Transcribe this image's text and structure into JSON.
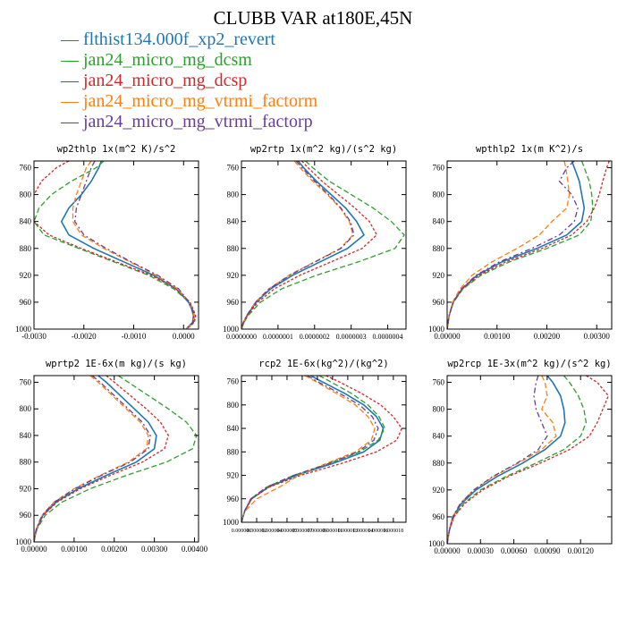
{
  "figure": {
    "title": "CLUBB VAR at180E,45N",
    "colors": {
      "blue": "#1f77b4",
      "green": "#2ca02c",
      "red": "#d62728",
      "orange": "#ff7f0e",
      "purple": "#6a3d9a"
    },
    "legend": [
      {
        "label": "flthist134.000f_xp2_revert",
        "color": "#1f77b4"
      },
      {
        "label": "jan24_micro_mg_dcsm",
        "color": "#2ca02c"
      },
      {
        "label": "jan24_micro_mg_dcsp",
        "color": "#d62728"
      },
      {
        "label": "jan24_micro_mg_vtrmi_factorm",
        "color": "#ff7f0e"
      },
      {
        "label": "jan24_micro_mg_vtrmi_factorp",
        "color": "#6a3d9a"
      }
    ]
  },
  "chart_data": [
    {
      "type": "line",
      "title": "wp2thlp  1x(m^2 K)/s^2",
      "xlim": [
        -0.003,
        0.0003
      ],
      "ylim": [
        1000,
        750
      ],
      "xticks": [
        -0.003,
        -0.002,
        -0.001,
        0.0
      ],
      "xtick_labels": [
        "-0.0030",
        "-0.0020",
        "-0.0010",
        "0.0000"
      ],
      "yticks": [
        760,
        800,
        840,
        880,
        920,
        960,
        1000
      ],
      "ytick_labels": [
        "760",
        "800",
        "840",
        "880",
        "920",
        "960",
        "1000"
      ],
      "y": [
        750,
        760,
        780,
        800,
        820,
        840,
        860,
        880,
        900,
        920,
        940,
        960,
        970,
        980,
        990,
        1000
      ],
      "series": [
        {
          "name": "flthist134.000f_xp2_revert",
          "values": [
            -0.00165,
            -0.0017,
            -0.00185,
            -0.00205,
            -0.0023,
            -0.00245,
            -0.0023,
            -0.0018,
            -0.0012,
            -0.0006,
            -0.00015,
            0.0001,
            0.00016,
            0.0002,
            0.00018,
            5e-05
          ]
        },
        {
          "name": "jan24_micro_mg_dcsm",
          "values": [
            -0.0016,
            -0.00175,
            -0.00225,
            -0.00265,
            -0.0029,
            -0.003,
            -0.0028,
            -0.0021,
            -0.0014,
            -0.0007,
            -0.0002,
            0.00012,
            0.00018,
            0.00022,
            0.0002,
            6e-05
          ]
        },
        {
          "name": "jan24_micro_mg_dcsp",
          "values": [
            -0.0023,
            -0.00255,
            -0.00285,
            -0.003,
            -0.00305,
            -0.003,
            -0.0027,
            -0.00205,
            -0.00135,
            -0.00065,
            -0.00015,
            0.00013,
            0.00019,
            0.00024,
            0.00022,
            6e-05
          ]
        },
        {
          "name": "jan24_micro_mg_vtrmi_factorm",
          "values": [
            -0.00185,
            -0.00195,
            -0.00205,
            -0.00215,
            -0.00222,
            -0.00222,
            -0.00205,
            -0.0016,
            -0.00108,
            -0.00055,
            -0.00012,
            0.00011,
            0.00017,
            0.00021,
            0.00019,
            5e-05
          ]
        },
        {
          "name": "jan24_micro_mg_vtrmi_factorp",
          "values": [
            -0.00178,
            -0.00185,
            -0.00195,
            -0.00205,
            -0.00215,
            -0.00218,
            -0.002,
            -0.00155,
            -0.00105,
            -0.00052,
            -0.0001,
            0.00011,
            0.00017,
            0.00021,
            0.00019,
            5e-05
          ]
        }
      ]
    },
    {
      "type": "line",
      "title": "wp2rtp  1x(m^2 kg)/(s^2 kg)",
      "xlim": [
        0.0,
        4.5e-07
      ],
      "ylim": [
        1000,
        750
      ],
      "xticks": [
        0.0,
        1e-07,
        2e-07,
        3e-07,
        4e-07
      ],
      "xtick_labels": [
        "0.0000000",
        "0.0000001",
        "0.0000002",
        "0.0000003",
        "0.0000004"
      ],
      "yticks": [
        760,
        800,
        840,
        880,
        920,
        960,
        1000
      ],
      "ytick_labels": [
        "760",
        "800",
        "840",
        "880",
        "920",
        "960",
        "1000"
      ],
      "y": [
        750,
        760,
        780,
        800,
        820,
        840,
        860,
        880,
        900,
        920,
        940,
        960,
        980,
        990,
        1000
      ],
      "series": [
        {
          "name": "flthist134.000f_xp2_revert",
          "values": [
            1.55e-07,
            1.7e-07,
            2.05e-07,
            2.45e-07,
            2.85e-07,
            3.15e-07,
            3.35e-07,
            2.9e-07,
            2.15e-07,
            1.4e-07,
            8e-08,
            4e-08,
            1.5e-08,
            6e-09,
            0.0
          ]
        },
        {
          "name": "jan24_micro_mg_dcsm",
          "values": [
            1.75e-07,
            1.95e-07,
            2.4e-07,
            3e-07,
            3.6e-07,
            4.1e-07,
            4.45e-07,
            4.2e-07,
            3.2e-07,
            2.05e-07,
            1.1e-07,
            5.2e-08,
            1.8e-08,
            7e-09,
            0.0
          ]
        },
        {
          "name": "jan24_micro_mg_dcsp",
          "values": [
            1.65e-07,
            1.82e-07,
            2.2e-07,
            2.65e-07,
            3.1e-07,
            3.5e-07,
            3.7e-07,
            3.3e-07,
            2.45e-07,
            1.6e-07,
            9e-08,
            4.5e-08,
            1.6e-08,
            6e-09,
            0.0
          ]
        },
        {
          "name": "jan24_micro_mg_vtrmi_factorm",
          "values": [
            1.45e-07,
            1.6e-07,
            1.95e-07,
            2.35e-07,
            2.7e-07,
            2.95e-07,
            3.05e-07,
            2.7e-07,
            2e-07,
            1.3e-07,
            7.5e-08,
            3.8e-08,
            1.4e-08,
            5e-09,
            0.0
          ]
        },
        {
          "name": "jan24_micro_mg_vtrmi_factorp",
          "values": [
            1.5e-07,
            1.65e-07,
            2e-07,
            2.38e-07,
            2.72e-07,
            2.98e-07,
            3.08e-07,
            2.72e-07,
            2.02e-07,
            1.32e-07,
            7.6e-08,
            3.9e-08,
            1.4e-08,
            5e-09,
            0.0
          ]
        }
      ]
    },
    {
      "type": "line",
      "title": "wpthlp2  1x(m K^2)/s",
      "xlim": [
        0.0,
        0.0033
      ],
      "ylim": [
        1000,
        750
      ],
      "xticks": [
        0.0,
        0.001,
        0.002,
        0.003
      ],
      "xtick_labels": [
        "0.00000",
        "0.00100",
        "0.00200",
        "0.00300"
      ],
      "yticks": [
        760,
        800,
        840,
        880,
        920,
        960,
        1000
      ],
      "ytick_labels": [
        "760",
        "800",
        "840",
        "880",
        "920",
        "960",
        "1000"
      ],
      "y": [
        750,
        760,
        780,
        800,
        820,
        840,
        860,
        880,
        900,
        920,
        940,
        960,
        980,
        990,
        1000
      ],
      "series": [
        {
          "name": "flthist134.000f_xp2_revert",
          "values": [
            0.0025,
            0.00255,
            0.00265,
            0.0027,
            0.00275,
            0.0027,
            0.0024,
            0.0018,
            0.0011,
            0.0006,
            0.0003,
            0.00012,
            4e-05,
            2e-05,
            0.0
          ]
        },
        {
          "name": "jan24_micro_mg_dcsm",
          "values": [
            0.0027,
            0.00275,
            0.00285,
            0.0029,
            0.00292,
            0.00288,
            0.00265,
            0.002,
            0.00125,
            0.00068,
            0.00032,
            0.00013,
            4e-05,
            2e-05,
            0.0
          ]
        },
        {
          "name": "jan24_micro_mg_dcsp",
          "values": [
            0.00325,
            0.0032,
            0.00312,
            0.00305,
            0.00295,
            0.0028,
            0.0025,
            0.0019,
            0.00118,
            0.00064,
            0.00031,
            0.00012,
            4e-05,
            2e-05,
            0.0
          ]
        },
        {
          "name": "jan24_micro_mg_vtrmi_factorm",
          "values": [
            0.00235,
            0.00238,
            0.00242,
            0.00245,
            0.0024,
            0.0021,
            0.00185,
            0.0014,
            0.0009,
            0.0005,
            0.00026,
            0.00011,
            4e-05,
            2e-05,
            0.0
          ]
        },
        {
          "name": "jan24_micro_mg_vtrmi_factorp",
          "values": [
            0.00255,
            0.0024,
            0.00225,
            0.0025,
            0.00262,
            0.00255,
            0.00225,
            0.0017,
            0.00105,
            0.00058,
            0.00029,
            0.00012,
            4e-05,
            2e-05,
            0.0
          ]
        }
      ]
    },
    {
      "type": "line",
      "title": "wprtp2  1E-6x(m kg)/(s kg)",
      "xlim": [
        0.0,
        0.0041
      ],
      "ylim": [
        1000,
        750
      ],
      "xticks": [
        0.0,
        0.001,
        0.002,
        0.003,
        0.004
      ],
      "xtick_labels": [
        "0.00000",
        "0.00100",
        "0.00200",
        "0.00300",
        "0.00400"
      ],
      "yticks": [
        760,
        800,
        840,
        880,
        920,
        960,
        1000
      ],
      "ytick_labels": [
        "760",
        "800",
        "840",
        "880",
        "920",
        "960",
        "1000"
      ],
      "y": [
        750,
        760,
        780,
        800,
        820,
        840,
        860,
        880,
        900,
        920,
        940,
        960,
        980,
        990,
        1000
      ],
      "series": [
        {
          "name": "flthist134.000f_xp2_revert",
          "values": [
            0.0016,
            0.0018,
            0.00215,
            0.0025,
            0.00285,
            0.00305,
            0.003,
            0.00255,
            0.0018,
            0.0011,
            0.00055,
            0.00022,
            7e-05,
            3e-05,
            0.0
          ]
        },
        {
          "name": "jan24_micro_mg_dcsm",
          "values": [
            0.0021,
            0.00235,
            0.00285,
            0.00335,
            0.0038,
            0.00405,
            0.00395,
            0.0033,
            0.0023,
            0.0014,
            0.0007,
            0.00028,
            8e-05,
            3e-05,
            0.0
          ]
        },
        {
          "name": "jan24_micro_mg_dcsp",
          "values": [
            0.0018,
            0.002,
            0.0024,
            0.0028,
            0.00315,
            0.00335,
            0.00325,
            0.0027,
            0.0019,
            0.00115,
            0.00058,
            0.00023,
            7e-05,
            3e-05,
            0.0
          ]
        },
        {
          "name": "jan24_micro_mg_vtrmi_factorm",
          "values": [
            0.0014,
            0.0016,
            0.00195,
            0.0023,
            0.00265,
            0.00285,
            0.0028,
            0.00235,
            0.00165,
            0.001,
            0.0005,
            0.0002,
            6e-05,
            2e-05,
            0.0
          ]
        },
        {
          "name": "jan24_micro_mg_vtrmi_factorp",
          "values": [
            0.00145,
            0.00165,
            0.002,
            0.00235,
            0.0027,
            0.0029,
            0.00285,
            0.0024,
            0.00168,
            0.00102,
            0.00051,
            0.0002,
            6e-05,
            2e-05,
            0.0
          ]
        }
      ]
    },
    {
      "type": "line",
      "title": "rcp2  1E-6x(kg^2)/(kg^2)",
      "xlim": [
        0.0,
        1.95e-05
      ],
      "ylim": [
        1000,
        750
      ],
      "xticks": [
        0.0,
        1.8e-06,
        3.6e-06,
        5.4e-06,
        7.2e-06,
        9e-06,
        1.08e-05,
        1.26e-05,
        1.44e-05,
        1.62e-05,
        1.8e-05
      ],
      "xtick_labels": [
        "0.000000",
        "0.000002",
        "0.000004",
        "0.000005",
        "0.000007",
        "0.000009",
        "0.000011",
        "0.000013",
        "0.000014",
        "0.000016",
        "0.000018"
      ],
      "yticks": [
        760,
        800,
        840,
        880,
        920,
        960,
        1000
      ],
      "ytick_labels": [
        "760",
        "800",
        "840",
        "880",
        "920",
        "960",
        "1000"
      ],
      "y": [
        750,
        760,
        780,
        800,
        820,
        840,
        860,
        880,
        900,
        920,
        940,
        960,
        980,
        990,
        1000
      ],
      "series": [
        {
          "name": "flthist134.000f_xp2_revert",
          "values": [
            8.2e-06,
            9.5e-06,
            1.22e-05,
            1.45e-05,
            1.6e-05,
            1.68e-05,
            1.64e-05,
            1.45e-05,
            1.08e-05,
            6.5e-06,
            3.2e-06,
            1.2e-06,
            4e-07,
            2e-07,
            0.0
          ]
        },
        {
          "name": "jan24_micro_mg_dcsm",
          "values": [
            9.2e-06,
            1.05e-05,
            1.3e-05,
            1.5e-05,
            1.63e-05,
            1.7e-05,
            1.62e-05,
            1.4e-05,
            1.04e-05,
            6.2e-06,
            3e-06,
            1.1e-06,
            4e-07,
            2e-07,
            0.0
          ]
        },
        {
          "name": "jan24_micro_mg_dcsp",
          "values": [
            1e-05,
            1.15e-05,
            1.42e-05,
            1.65e-05,
            1.8e-05,
            1.9e-05,
            1.84e-05,
            1.6e-05,
            1.18e-05,
            7e-06,
            3.3e-06,
            1.2e-06,
            4e-07,
            2e-07,
            0.0
          ]
        },
        {
          "name": "jan24_micro_mg_vtrmi_factorm",
          "values": [
            7.5e-06,
            8.8e-06,
            1.12e-05,
            1.35e-05,
            1.5e-05,
            1.58e-05,
            1.54e-05,
            1.35e-05,
            1e-05,
            6.8e-06,
            4.5e-06,
            1.8e-06,
            5e-07,
            2e-07,
            0.0
          ]
        },
        {
          "name": "jan24_micro_mg_vtrmi_factorp",
          "values": [
            7.8e-06,
            9e-06,
            1.16e-05,
            1.4e-05,
            1.55e-05,
            1.62e-05,
            1.57e-05,
            1.38e-05,
            1.03e-05,
            6.2e-06,
            3e-06,
            1.1e-06,
            4e-07,
            2e-07,
            0.0
          ]
        }
      ]
    },
    {
      "type": "line",
      "title": "wp2rcp  1E-3x(m^2 kg)/(s^2 kg)",
      "xlim": [
        0.0,
        0.00148
      ],
      "ylim": [
        1000,
        750
      ],
      "xticks": [
        0.0,
        0.0003,
        0.0006,
        0.0009,
        0.0012
      ],
      "xtick_labels": [
        "0.00000",
        "0.00030",
        "0.00060",
        "0.00090",
        "0.00120"
      ],
      "yticks": [
        760,
        800,
        840,
        880,
        920,
        960,
        1000
      ],
      "ytick_labels": [
        "760",
        "800",
        "840",
        "880",
        "920",
        "960",
        "1000"
      ],
      "y": [
        750,
        760,
        780,
        800,
        820,
        840,
        860,
        880,
        900,
        920,
        940,
        960,
        980,
        990,
        1000
      ],
      "series": [
        {
          "name": "flthist134.000f_xp2_revert",
          "values": [
            0.0009,
            0.00095,
            0.00102,
            0.00105,
            0.00106,
            0.00102,
            0.00088,
            0.00068,
            0.00045,
            0.00026,
            0.00013,
            5e-05,
            2e-05,
            1e-05,
            0.0
          ]
        },
        {
          "name": "jan24_micro_mg_dcsm",
          "values": [
            0.00105,
            0.0011,
            0.00118,
            0.00123,
            0.00125,
            0.0012,
            0.00105,
            0.0008,
            0.00053,
            0.0003,
            0.00015,
            6e-05,
            2e-05,
            1e-05,
            0.0
          ]
        },
        {
          "name": "jan24_micro_mg_dcsp",
          "values": [
            0.00125,
            0.00135,
            0.00145,
            0.0014,
            0.00135,
            0.00128,
            0.0011,
            0.00084,
            0.00055,
            0.00032,
            0.00016,
            6e-05,
            2e-05,
            1e-05,
            0.0
          ]
        },
        {
          "name": "jan24_micro_mg_vtrmi_factorm",
          "values": [
            0.00085,
            0.00088,
            0.0009,
            0.00085,
            0.00095,
            0.00098,
            0.00085,
            0.00064,
            0.00042,
            0.00024,
            0.00012,
            5e-05,
            2e-05,
            1e-05,
            0.0
          ]
        },
        {
          "name": "jan24_micro_mg_vtrmi_factorp",
          "values": [
            0.00082,
            0.0008,
            0.00078,
            0.0008,
            0.00085,
            0.0009,
            0.00082,
            0.00063,
            0.00041,
            0.00024,
            0.00012,
            5e-05,
            2e-05,
            1e-05,
            0.0
          ]
        }
      ]
    }
  ]
}
